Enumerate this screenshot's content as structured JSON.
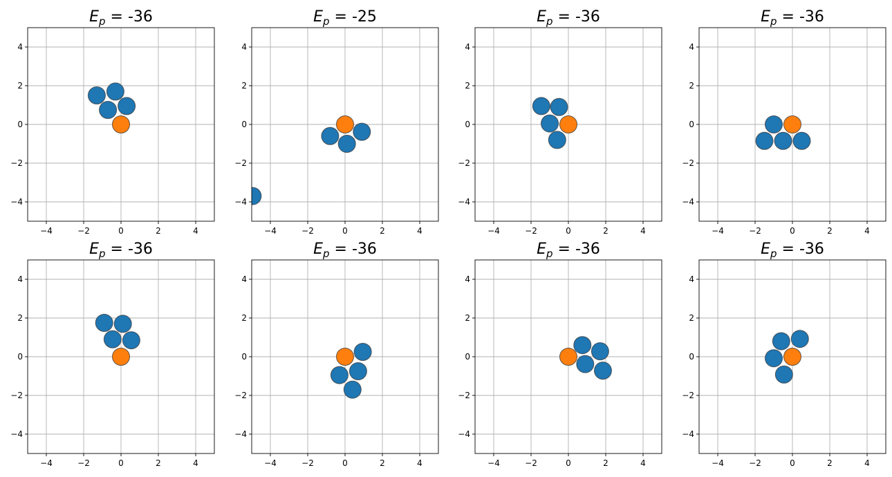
{
  "chart_data": [
    {
      "type": "scatter",
      "title": {
        "symbol": "E",
        "subscript": "p",
        "value": "-36"
      },
      "xlim": [
        -5,
        5
      ],
      "ylim": [
        -5,
        5
      ],
      "xticks": [
        -4,
        -2,
        0,
        2,
        4
      ],
      "yticks": [
        -4,
        -2,
        0,
        2,
        4
      ],
      "grid": true,
      "series": [
        {
          "color": "#1f77b4",
          "points": [
            [
              -1.3,
              1.5
            ],
            [
              -0.3,
              1.7
            ],
            [
              -0.7,
              0.75
            ],
            [
              0.3,
              0.95
            ]
          ]
        },
        {
          "color": "#ff7f0e",
          "points": [
            [
              0.0,
              0.0
            ]
          ]
        }
      ]
    },
    {
      "type": "scatter",
      "title": {
        "symbol": "E",
        "subscript": "p",
        "value": "-25"
      },
      "xlim": [
        -5,
        5
      ],
      "ylim": [
        -5,
        5
      ],
      "xticks": [
        -4,
        -2,
        0,
        2,
        4
      ],
      "yticks": [
        -4,
        -2,
        0,
        2,
        4
      ],
      "grid": true,
      "series": [
        {
          "color": "#1f77b4",
          "points": [
            [
              -0.8,
              -0.6
            ],
            [
              0.1,
              -1.0
            ],
            [
              0.9,
              -0.38
            ],
            [
              -4.95,
              -3.7
            ]
          ]
        },
        {
          "color": "#ff7f0e",
          "points": [
            [
              0.0,
              0.0
            ]
          ]
        }
      ]
    },
    {
      "type": "scatter",
      "title": {
        "symbol": "E",
        "subscript": "p",
        "value": "-36"
      },
      "xlim": [
        -5,
        5
      ],
      "ylim": [
        -5,
        5
      ],
      "xticks": [
        -4,
        -2,
        0,
        2,
        4
      ],
      "yticks": [
        -4,
        -2,
        0,
        2,
        4
      ],
      "grid": true,
      "series": [
        {
          "color": "#1f77b4",
          "points": [
            [
              -1.45,
              0.95
            ],
            [
              -0.5,
              0.9
            ],
            [
              -1.0,
              0.05
            ],
            [
              -0.6,
              -0.8
            ]
          ]
        },
        {
          "color": "#ff7f0e",
          "points": [
            [
              0.0,
              0.0
            ]
          ]
        }
      ]
    },
    {
      "type": "scatter",
      "title": {
        "symbol": "E",
        "subscript": "p",
        "value": "-36"
      },
      "xlim": [
        -5,
        5
      ],
      "ylim": [
        -5,
        5
      ],
      "xticks": [
        -4,
        -2,
        0,
        2,
        4
      ],
      "yticks": [
        -4,
        -2,
        0,
        2,
        4
      ],
      "grid": true,
      "series": [
        {
          "color": "#1f77b4",
          "points": [
            [
              -1.0,
              0.0
            ],
            [
              -1.5,
              -0.85
            ],
            [
              -0.5,
              -0.85
            ],
            [
              0.5,
              -0.85
            ]
          ]
        },
        {
          "color": "#ff7f0e",
          "points": [
            [
              0.0,
              0.0
            ]
          ]
        }
      ]
    },
    {
      "type": "scatter",
      "title": {
        "symbol": "E",
        "subscript": "p",
        "value": "-36"
      },
      "xlim": [
        -5,
        5
      ],
      "ylim": [
        -5,
        5
      ],
      "xticks": [
        -4,
        -2,
        0,
        2,
        4
      ],
      "yticks": [
        -4,
        -2,
        0,
        2,
        4
      ],
      "grid": true,
      "series": [
        {
          "color": "#1f77b4",
          "points": [
            [
              -0.9,
              1.75
            ],
            [
              0.1,
              1.7
            ],
            [
              -0.45,
              0.9
            ],
            [
              0.55,
              0.85
            ]
          ]
        },
        {
          "color": "#ff7f0e",
          "points": [
            [
              0.0,
              0.0
            ]
          ]
        }
      ]
    },
    {
      "type": "scatter",
      "title": {
        "symbol": "E",
        "subscript": "p",
        "value": "-36"
      },
      "xlim": [
        -5,
        5
      ],
      "ylim": [
        -5,
        5
      ],
      "xticks": [
        -4,
        -2,
        0,
        2,
        4
      ],
      "yticks": [
        -4,
        -2,
        0,
        2,
        4
      ],
      "grid": true,
      "series": [
        {
          "color": "#1f77b4",
          "points": [
            [
              0.95,
              0.25
            ],
            [
              -0.3,
              -0.95
            ],
            [
              0.7,
              -0.75
            ],
            [
              0.4,
              -1.7
            ]
          ]
        },
        {
          "color": "#ff7f0e",
          "points": [
            [
              0.0,
              0.0
            ]
          ]
        }
      ]
    },
    {
      "type": "scatter",
      "title": {
        "symbol": "E",
        "subscript": "p",
        "value": "-36"
      },
      "xlim": [
        -5,
        5
      ],
      "ylim": [
        -5,
        5
      ],
      "xticks": [
        -4,
        -2,
        0,
        2,
        4
      ],
      "yticks": [
        -4,
        -2,
        0,
        2,
        4
      ],
      "grid": true,
      "series": [
        {
          "color": "#1f77b4",
          "points": [
            [
              0.75,
              0.6
            ],
            [
              1.7,
              0.28
            ],
            [
              0.9,
              -0.38
            ],
            [
              1.85,
              -0.72
            ]
          ]
        },
        {
          "color": "#ff7f0e",
          "points": [
            [
              0.0,
              0.0
            ]
          ]
        }
      ]
    },
    {
      "type": "scatter",
      "title": {
        "symbol": "E",
        "subscript": "p",
        "value": "-36"
      },
      "xlim": [
        -5,
        5
      ],
      "ylim": [
        -5,
        5
      ],
      "xticks": [
        -4,
        -2,
        0,
        2,
        4
      ],
      "yticks": [
        -4,
        -2,
        0,
        2,
        4
      ],
      "grid": true,
      "series": [
        {
          "color": "#1f77b4",
          "points": [
            [
              -0.6,
              0.8
            ],
            [
              0.4,
              0.92
            ],
            [
              -1.0,
              -0.08
            ],
            [
              -0.45,
              -0.92
            ]
          ]
        },
        {
          "color": "#ff7f0e",
          "points": [
            [
              0.0,
              0.0
            ]
          ]
        }
      ]
    }
  ]
}
